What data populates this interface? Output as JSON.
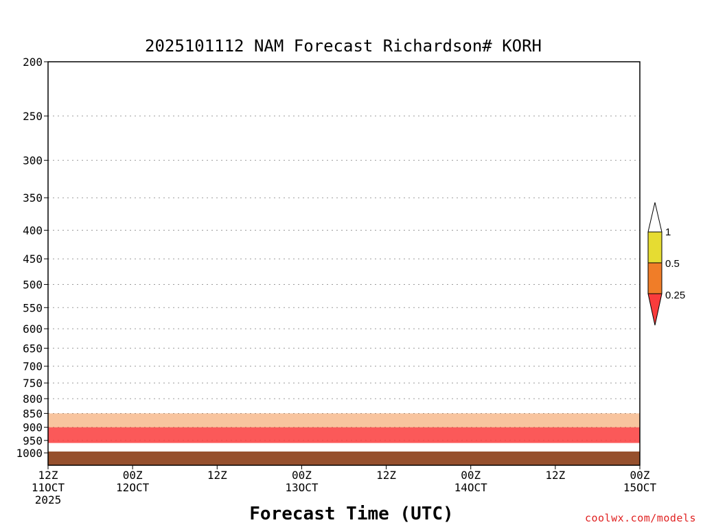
{
  "chart_data": {
    "type": "heatmap",
    "title": "2025101112 NAM Forecast Richardson# KORH",
    "xlabel": "Forecast Time (UTC)",
    "ylabel": "",
    "y_scale": "log",
    "y_axis_inverted": true,
    "ylim": [
      1000,
      200
    ],
    "y_ticks": [
      200,
      250,
      300,
      350,
      400,
      450,
      500,
      550,
      600,
      650,
      700,
      750,
      800,
      850,
      900,
      950,
      1000
    ],
    "x_ticks": [
      {
        "hour": 0,
        "line1": "12Z",
        "line2": "11OCT",
        "line3": "2025"
      },
      {
        "hour": 12,
        "line1": "00Z",
        "line2": "12OCT",
        "line3": ""
      },
      {
        "hour": 24,
        "line1": "12Z",
        "line2": "",
        "line3": ""
      },
      {
        "hour": 36,
        "line1": "00Z",
        "line2": "13OCT",
        "line3": ""
      },
      {
        "hour": 48,
        "line1": "12Z",
        "line2": "",
        "line3": ""
      },
      {
        "hour": 60,
        "line1": "00Z",
        "line2": "14OCT",
        "line3": ""
      },
      {
        "hour": 72,
        "line1": "12Z",
        "line2": "",
        "line3": ""
      },
      {
        "hour": 84,
        "line1": "00Z",
        "line2": "15OCT",
        "line3": ""
      }
    ],
    "xlim": [
      0,
      84
    ],
    "colorbar": {
      "labels": [
        "1",
        "0.5",
        "0.25"
      ],
      "colors": {
        "gt1": "#ffffff",
        "0.5-1": "#e6dc32",
        "0.25-0.5": "#f07d28",
        "lt0.25": "#fa3c3c"
      },
      "placement": "right"
    },
    "ground_color": "#96502d",
    "grid": "dotted horizontal"
  },
  "credit": "coolwx.com/models"
}
